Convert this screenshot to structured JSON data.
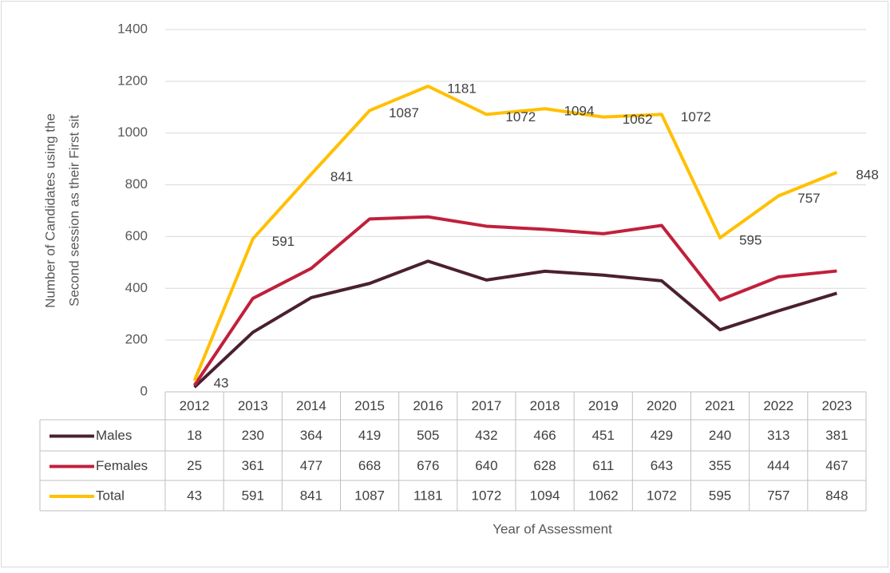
{
  "chart_data": {
    "type": "line",
    "ylabel": [
      "Number of Candidates using the",
      "Second session as their First sit"
    ],
    "xlabel": "Year of Assessment",
    "categories": [
      "2012",
      "2013",
      "2014",
      "2015",
      "2016",
      "2017",
      "2018",
      "2019",
      "2020",
      "2021",
      "2022",
      "2023"
    ],
    "series": [
      {
        "name": "Males",
        "color": "#4a2031",
        "values": [
          18,
          230,
          364,
          419,
          505,
          432,
          466,
          451,
          429,
          240,
          313,
          381
        ]
      },
      {
        "name": "Females",
        "color": "#c0203c",
        "values": [
          25,
          361,
          477,
          668,
          676,
          640,
          628,
          611,
          643,
          355,
          444,
          467
        ]
      },
      {
        "name": "Total",
        "color": "#ffc000",
        "values": [
          43,
          591,
          841,
          1087,
          1181,
          1072,
          1094,
          1062,
          1072,
          595,
          757,
          848
        ],
        "data_labels": true
      }
    ],
    "ylim": [
      0,
      1400
    ],
    "yticks": [
      0,
      200,
      400,
      600,
      800,
      1000,
      1200,
      1400
    ],
    "grid": true,
    "data_table": true
  }
}
